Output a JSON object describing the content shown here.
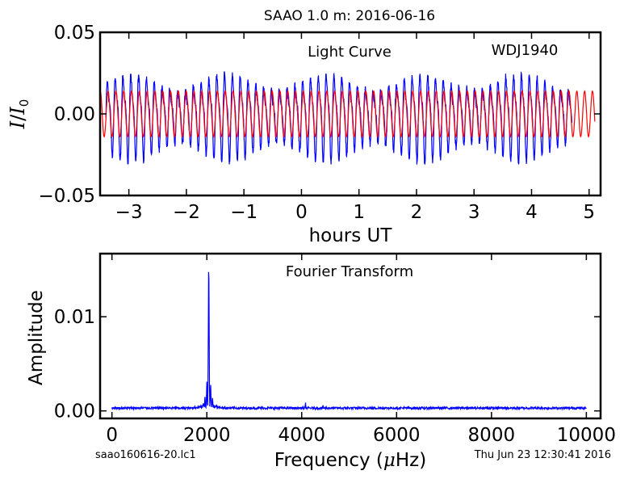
{
  "figure": {
    "title": "SAAO 1.0 m:  2016-06-16",
    "footer_left": "saao160616-20.lc1",
    "footer_right": "Thu Jun 23 12:30:41 2016"
  },
  "chart_data": [
    {
      "type": "line",
      "name": "light-curve",
      "annotations": [
        "Light Curve",
        "WDJ1940"
      ],
      "xlabel": "hours UT",
      "ylabel": "I/I0",
      "xlim": [
        -3.5,
        5.2
      ],
      "ylim": [
        -0.05,
        0.05
      ],
      "xticks": [
        -3,
        -2,
        -1,
        0,
        1,
        2,
        3,
        4,
        5
      ],
      "xtick_labels": [
        "−3",
        "−2",
        "−1",
        "0",
        "1",
        "2",
        "3",
        "4",
        "5"
      ],
      "yticks": [
        -0.05,
        0.0,
        0.05
      ],
      "ytick_labels": [
        "−0.05",
        "0.00",
        "0.05"
      ],
      "series": [
        {
          "color": "#0000ff",
          "x_start": -3.4,
          "x_end": 4.7,
          "period_hours": 0.1358,
          "amplitude": 0.022,
          "noise": 0.004
        },
        {
          "color": "#ff0000",
          "x_start": -3.5,
          "x_end": 5.1,
          "period_hours": 0.1358,
          "amplitude": 0.014
        }
      ]
    },
    {
      "type": "line",
      "name": "fourier-transform",
      "annotations": [
        "Fourier Transform"
      ],
      "xlabel": "Frequency (μHz)",
      "ylabel": "Amplitude",
      "xlim": [
        -250,
        10300
      ],
      "ylim": [
        -0.0008,
        0.0167
      ],
      "xticks": [
        0,
        2000,
        4000,
        6000,
        8000,
        10000
      ],
      "xtick_labels": [
        "0",
        "2000",
        "4000",
        "6000",
        "8000",
        "10000"
      ],
      "yticks": [
        0.0,
        0.01
      ],
      "ytick_labels": [
        "0.00",
        "0.01"
      ],
      "series": [
        {
          "color": "#0000ff",
          "x_start": 0,
          "x_end": 10000,
          "peaks": [
            {
              "x": 2040,
              "y": 0.0154
            },
            {
              "x": 2000,
              "y": 0.0031
            },
            {
              "x": 2080,
              "y": 0.0028
            },
            {
              "x": 1960,
              "y": 0.0016
            },
            {
              "x": 2120,
              "y": 0.0014
            },
            {
              "x": 4080,
              "y": 0.0009
            },
            {
              "x": 4450,
              "y": 0.0006
            }
          ],
          "noise_floor": 0.0003
        }
      ]
    }
  ]
}
